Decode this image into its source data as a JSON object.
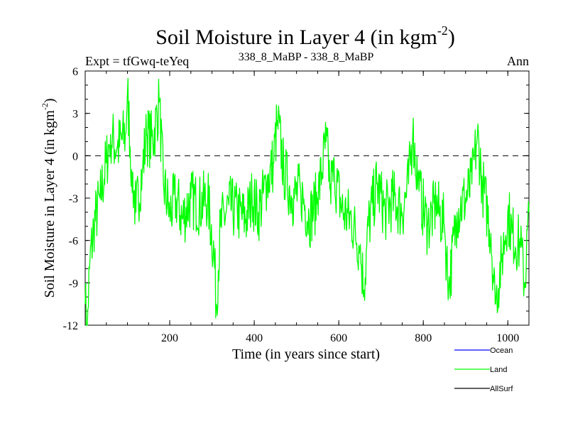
{
  "header": {
    "title_main": "Soil Moisture in Layer 4 (in kgm",
    "title_sup": "-2",
    "title_close": ")",
    "left_label": "Expt = tfGwq-teYeq",
    "center_label": "338_8_MaBP - 338_8_MaBP",
    "right_label": "Ann"
  },
  "colors": {
    "ocean": "#0000ff",
    "land": "#00ff00",
    "allsurf": "#000000",
    "axis": "#000000"
  },
  "chart_data": {
    "type": "line",
    "title": "Soil Moisture in Layer 4 (in kgm-2)",
    "xlabel": "Time (in years since start)",
    "ylabel_main": "Soil Moisture in Layer 4 (in kgm",
    "ylabel_sup": "-2",
    "ylabel_close": ")",
    "xlim": [
      0,
      1050
    ],
    "ylim": [
      -12,
      6
    ],
    "xticks": [
      200,
      400,
      600,
      800,
      1000
    ],
    "yticks": [
      -12,
      -9,
      -6,
      -3,
      0,
      3,
      6
    ],
    "reference_line": 0,
    "legend": [
      {
        "name": "Ocean",
        "color": "#0000ff"
      },
      {
        "name": "Land",
        "color": "#00ff00"
      },
      {
        "name": "AllSurf",
        "color": "#000000"
      }
    ],
    "series": [
      {
        "name": "Land",
        "color": "#00ff00",
        "anchors": [
          [
            0,
            -10.5
          ],
          [
            5,
            -12
          ],
          [
            10,
            -8
          ],
          [
            20,
            -5
          ],
          [
            35,
            -3
          ],
          [
            50,
            -0.5
          ],
          [
            60,
            1.5
          ],
          [
            75,
            0.5
          ],
          [
            95,
            1.5
          ],
          [
            100,
            4.5
          ],
          [
            110,
            -1
          ],
          [
            120,
            -4
          ],
          [
            135,
            -1
          ],
          [
            145,
            1.5
          ],
          [
            160,
            1
          ],
          [
            175,
            3.8
          ],
          [
            185,
            -2
          ],
          [
            200,
            -4
          ],
          [
            215,
            -3
          ],
          [
            230,
            -4.5
          ],
          [
            250,
            -3
          ],
          [
            270,
            -3.5
          ],
          [
            290,
            -3
          ],
          [
            305,
            -7
          ],
          [
            310,
            -10.5
          ],
          [
            320,
            -5
          ],
          [
            340,
            -3.5
          ],
          [
            360,
            -4
          ],
          [
            380,
            -4.5
          ],
          [
            395,
            -3
          ],
          [
            410,
            -4
          ],
          [
            430,
            -2
          ],
          [
            445,
            -0.5
          ],
          [
            455,
            2.5
          ],
          [
            470,
            -1
          ],
          [
            490,
            -3
          ],
          [
            510,
            -2.5
          ],
          [
            530,
            -4.5
          ],
          [
            550,
            -3
          ],
          [
            570,
            1
          ],
          [
            580,
            -2
          ],
          [
            590,
            -1.5
          ],
          [
            610,
            -4
          ],
          [
            630,
            -4.5
          ],
          [
            650,
            -6.5
          ],
          [
            660,
            -9.5
          ],
          [
            670,
            -5
          ],
          [
            690,
            -2
          ],
          [
            710,
            -4
          ],
          [
            730,
            -3
          ],
          [
            750,
            -4
          ],
          [
            765,
            -2
          ],
          [
            775,
            1.5
          ],
          [
            790,
            -2.5
          ],
          [
            810,
            -5
          ],
          [
            830,
            -3.5
          ],
          [
            850,
            -5
          ],
          [
            860,
            -9.5
          ],
          [
            880,
            -4
          ],
          [
            900,
            -3
          ],
          [
            915,
            -2
          ],
          [
            928,
            1.5
          ],
          [
            940,
            -2
          ],
          [
            960,
            -5.5
          ],
          [
            970,
            -10.5
          ],
          [
            985,
            -7.5
          ],
          [
            1000,
            -4
          ],
          [
            1010,
            -5.5
          ],
          [
            1030,
            -6.5
          ],
          [
            1040,
            -9
          ],
          [
            1050,
            -4
          ]
        ]
      }
    ]
  }
}
